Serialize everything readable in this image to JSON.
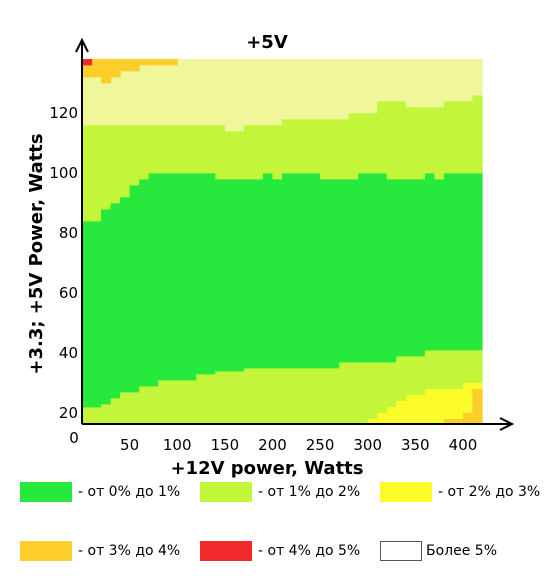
{
  "chart_data": {
    "type": "heatmap",
    "title": "+5V",
    "xlabel": "+12V power, Watts",
    "ylabel": "+3.3; +5V Power, Watts",
    "xlim": [
      0,
      425
    ],
    "ylim": [
      15,
      138
    ],
    "x_ticks": [
      "0",
      "50",
      "100",
      "150",
      "200",
      "250",
      "300",
      "350",
      "400"
    ],
    "y_ticks": [
      "20",
      "40",
      "60",
      "80",
      "100",
      "120"
    ],
    "x_tick_values": [
      0,
      50,
      100,
      150,
      200,
      250,
      300,
      350,
      400
    ],
    "y_tick_values": [
      20,
      40,
      60,
      80,
      100,
      120
    ],
    "x_origin_label": "0",
    "cell_width_x": 10,
    "x_start": 0,
    "x_cells": 42,
    "region_levels": [
      {
        "level": 0,
        "name": "- от 0% до 1%",
        "color": "#27e83c"
      },
      {
        "level": 1,
        "name": "- от 1% до 2%",
        "color": "#c3f53a"
      },
      {
        "level": 2,
        "name": "- от 2% до 3%",
        "color": "#fbfb2a"
      },
      {
        "level": 3,
        "name": "- от 3% до 4%",
        "color": "#fdcd2b"
      },
      {
        "level": 4,
        "name": "- от 4% до 5%",
        "color": "#f02a2a"
      },
      {
        "level": 5,
        "name": "Более 5%",
        "color": "#ffffff"
      }
    ],
    "light_band_color": "#f0f69a",
    "boundaries": {
      "green_bottom": [
        22,
        22,
        23,
        25,
        27,
        27,
        29,
        29,
        31,
        31,
        31,
        31,
        33,
        33,
        34,
        34,
        34,
        35,
        35,
        35,
        35,
        35,
        35,
        35,
        35,
        35,
        35,
        37,
        37,
        37,
        37,
        37,
        37,
        39,
        39,
        39,
        41,
        41,
        41,
        41,
        41,
        41
      ],
      "green_top": [
        84,
        84,
        88,
        90,
        92,
        96,
        98,
        100,
        100,
        100,
        100,
        100,
        100,
        100,
        98,
        98,
        98,
        98,
        98,
        100,
        98,
        100,
        100,
        100,
        100,
        98,
        98,
        98,
        98,
        100,
        100,
        100,
        98,
        98,
        98,
        98,
        100,
        98,
        100,
        100,
        100,
        100
      ],
      "light_band_bottom": [
        116,
        116,
        116,
        116,
        116,
        116,
        116,
        116,
        116,
        116,
        116,
        116,
        116,
        116,
        116,
        114,
        114,
        116,
        116,
        116,
        116,
        118,
        118,
        118,
        118,
        118,
        118,
        118,
        120,
        120,
        120,
        124,
        124,
        124,
        122,
        122,
        122,
        122,
        124,
        124,
        124,
        126
      ],
      "orange_top_left": [
        132,
        132,
        130,
        132,
        134,
        134,
        136,
        136,
        136,
        136
      ]
    },
    "yellow_corner": {
      "x_from": 28,
      "comment": ""
    },
    "plot_top_y": 138
  },
  "legend": {
    "items": [
      {
        "label": "- от 0% до 1%",
        "color": "#27e83c"
      },
      {
        "label": "- от 1% до 2%",
        "color": "#c3f53a"
      },
      {
        "label": "- от 2% до 3%",
        "color": "#fbfb2a"
      },
      {
        "label": "- от 3% до 4%",
        "color": "#fdcd2b"
      },
      {
        "label": "- от 4% до 5%",
        "color": "#f02a2a"
      },
      {
        "label": "Более 5%",
        "color": "#ffffff"
      }
    ]
  }
}
